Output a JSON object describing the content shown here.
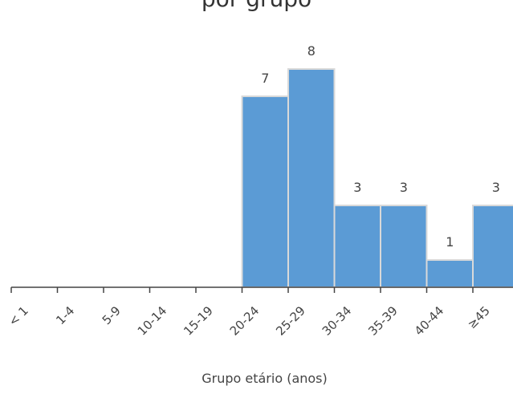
{
  "chart_data": {
    "type": "bar",
    "title": "por grupo",
    "xlabel": "Grupo etário (anos)",
    "ylabel": "",
    "categories": [
      "< 1",
      "1-4",
      "5-9",
      "10-14",
      "15-19",
      "20-24",
      "25-29",
      "30-34",
      "35-39",
      "40-44",
      "≥45"
    ],
    "values": [
      0,
      0,
      0,
      0,
      0,
      7,
      8,
      3,
      3,
      1,
      3
    ],
    "data_labels": [
      "",
      "",
      "",
      "",
      "",
      "7",
      "8",
      "3",
      "3",
      "1",
      "3"
    ],
    "ylim": [
      0,
      8
    ],
    "grid": false,
    "legend": "none",
    "colors": {
      "bar": "#5b9bd5",
      "bar_border": "#d9d9d9",
      "axis": "#444444",
      "text": "#444444"
    }
  }
}
